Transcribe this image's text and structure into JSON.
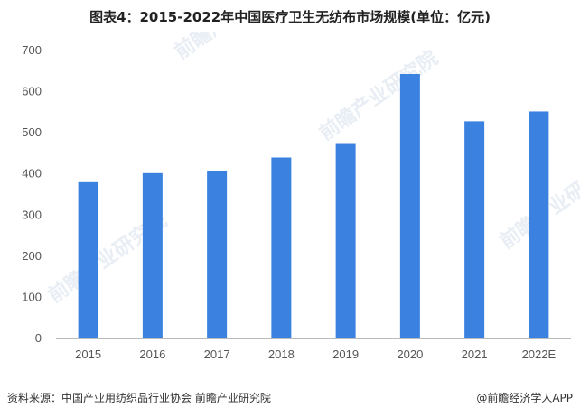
{
  "title": "图表4：2015-2022年中国医疗卫生无纺布市场规模(单位：亿元)",
  "source": "资料来源：中国产业用纺织品行业协会 前瞻产业研究院",
  "credit": "@前瞻经济学人APP",
  "watermark": "前瞻产业研究院",
  "colors": {
    "bar": "#3b82e0",
    "axis": "#bbbbbb"
  },
  "chart_data": {
    "type": "bar",
    "categories": [
      "2015",
      "2016",
      "2017",
      "2018",
      "2019",
      "2020",
      "2021",
      "2022E"
    ],
    "values": [
      380,
      402,
      408,
      440,
      475,
      643,
      528,
      552
    ],
    "yticks": [
      0,
      100,
      200,
      300,
      400,
      500,
      600,
      700
    ],
    "ylim": [
      0,
      700
    ],
    "title": "",
    "xlabel": "",
    "ylabel": ""
  }
}
